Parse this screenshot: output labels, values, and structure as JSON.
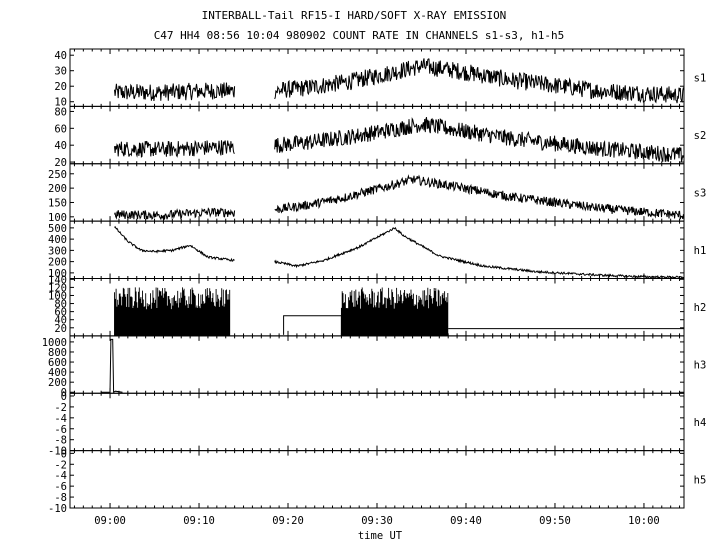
{
  "title": "INTERBALL-Tail RF15-I HARD/SOFT X-RAY EMISSION",
  "subtitle": "C47 HH4 08:56 10:04 980902  COUNT RATE IN CHANNELS s1-s3, h1-h5",
  "chart_data": {
    "type": "line",
    "title": "INTERBALL-Tail RF15-I HARD/SOFT X-RAY EMISSION",
    "subtitle": "C47 HH4 08:56 10:04 980902  COUNT RATE IN CHANNELS s1-s3, h1-h5",
    "xlabel": "time UT",
    "x_ticks": [
      "09:00",
      "09:10",
      "09:20",
      "09:30",
      "09:40",
      "09:50",
      "10:00"
    ],
    "x_range_min": [
      -4.5,
      64.5
    ],
    "ylabel": "",
    "grid": false,
    "panels": [
      {
        "name": "s1",
        "ylim": [
          7,
          44
        ],
        "yticks": [
          10,
          20,
          30,
          40
        ],
        "segments": [
          {
            "style": "noisy",
            "noise": 3.5,
            "x": [
              0.5,
              6,
              11,
              14
            ],
            "y": [
              16,
              16,
              17,
              17
            ]
          },
          {
            "style": "noisy",
            "noise": 3.5,
            "x": [
              18.5,
              22,
              27,
              31,
              35,
              39,
              45,
              55,
              64.5
            ],
            "y": [
              17,
              19,
              23,
              28,
              33,
              30,
              24,
              17,
              14
            ]
          }
        ]
      },
      {
        "name": "s2",
        "ylim": [
          18,
          86
        ],
        "yticks": [
          20,
          40,
          60,
          80
        ],
        "segments": [
          {
            "style": "noisy",
            "noise": 6,
            "x": [
              0.5,
              6,
              11,
              14
            ],
            "y": [
              36,
              35,
              37,
              38
            ]
          },
          {
            "style": "noisy",
            "noise": 6,
            "x": [
              18.5,
              22,
              27,
              31,
              35,
              39,
              45,
              55,
              64.5
            ],
            "y": [
              40,
              43,
              50,
              57,
              65,
              58,
              48,
              36,
              28
            ]
          }
        ]
      },
      {
        "name": "s3",
        "ylim": [
          85,
          285
        ],
        "yticks": [
          100,
          150,
          200,
          250
        ],
        "segments": [
          {
            "style": "noisy",
            "noise": 10,
            "x": [
              0.5,
              6,
              11,
              14
            ],
            "y": [
              108,
              106,
              116,
              115
            ]
          },
          {
            "style": "noisy",
            "noise": 10,
            "x": [
              18.5,
              22,
              26,
              31,
              34,
              38,
              45,
              55,
              64.5
            ],
            "y": [
              125,
              140,
              165,
              205,
              230,
              210,
              170,
              130,
              105
            ]
          }
        ]
      },
      {
        "name": "h1",
        "ylim": [
          50,
          560
        ],
        "yticks": [
          100,
          200,
          300,
          400,
          500
        ],
        "segments": [
          {
            "style": "noisy",
            "noise": 6,
            "x": [
              0.5,
              2,
              3.5,
              5,
              7,
              9,
              11,
              14
            ],
            "y": [
              510,
              380,
              300,
              290,
              300,
              345,
              240,
              210
            ]
          },
          {
            "style": "noisy",
            "noise": 6,
            "x": [
              18.5,
              21,
              24,
              28,
              32,
              33,
              37,
              42,
              48,
              55,
              60,
              64.5
            ],
            "y": [
              200,
              160,
              210,
              330,
              500,
              430,
              250,
              160,
              110,
              80,
              65,
              60
            ]
          }
        ]
      },
      {
        "name": "h2",
        "ylim": [
          0,
          142
        ],
        "yticks": [
          20,
          40,
          60,
          80,
          100,
          120,
          140
        ],
        "segments": [
          {
            "style": "spiky",
            "x": [
              0.5,
              13.5
            ],
            "base": 0,
            "peak": 120
          },
          {
            "style": "step",
            "x": [
              19.5,
              19.5,
              26,
              26
            ],
            "y": [
              0,
              50,
              50,
              0
            ]
          },
          {
            "style": "spiky",
            "x": [
              26,
              38
            ],
            "base": 0,
            "peak": 120
          },
          {
            "style": "step",
            "x": [
              38,
              64.5
            ],
            "y": [
              18,
              18
            ]
          }
        ]
      },
      {
        "name": "h3",
        "ylim": [
          -20,
          1120
        ],
        "yticks": [
          0,
          200,
          400,
          600,
          800,
          1000
        ],
        "segments": [
          {
            "style": "step",
            "x": [
              -1,
              0,
              0.1,
              0.3,
              0.4,
              0.6,
              1.4
            ],
            "y": [
              0,
              0,
              1050,
              1050,
              0,
              20,
              0
            ]
          }
        ]
      },
      {
        "name": "h4",
        "ylim": [
          -10,
          0.5
        ],
        "yticks": [
          -10,
          -8,
          -6,
          -4,
          -2,
          0
        ],
        "segments": []
      },
      {
        "name": "h5",
        "ylim": [
          -10,
          0.5
        ],
        "yticks": [
          -10,
          -8,
          -6,
          -4,
          -2,
          0
        ],
        "segments": []
      }
    ]
  }
}
